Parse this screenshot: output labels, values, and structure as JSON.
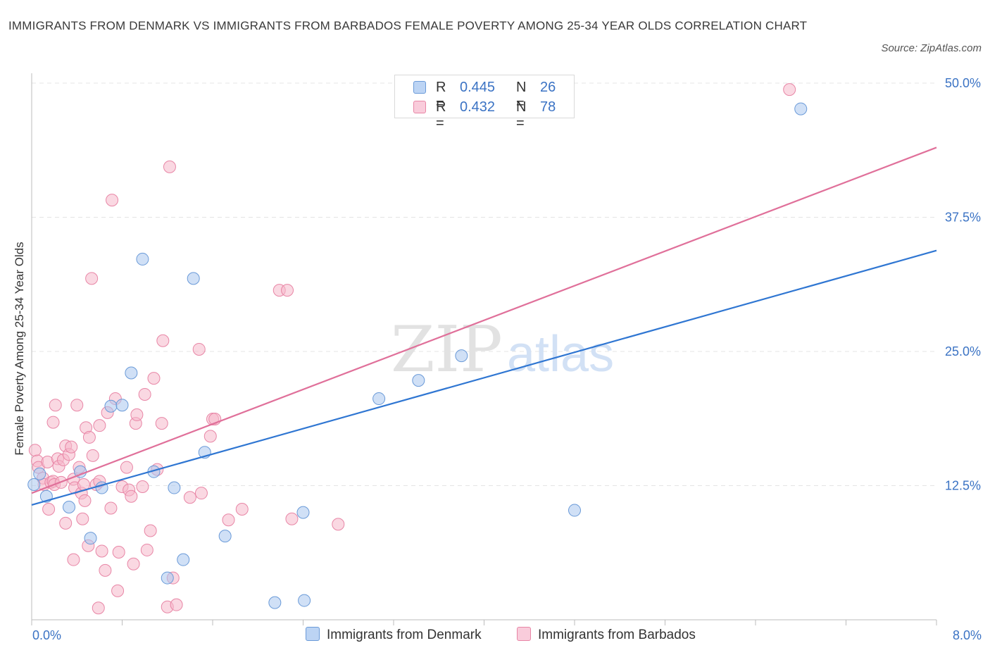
{
  "title": "IMMIGRANTS FROM DENMARK VS IMMIGRANTS FROM BARBADOS FEMALE POVERTY AMONG 25-34 YEAR OLDS CORRELATION CHART",
  "source": "Source: ZipAtlas.com",
  "watermark": {
    "zip": "ZIP",
    "atlas": "atlas"
  },
  "colors": {
    "denmark_fill": "#a9c6ef",
    "denmark_stroke": "#6a9ad8",
    "denmark_line": "#2f76d2",
    "barbados_fill": "#f5b8cb",
    "barbados_stroke": "#e886a6",
    "barbados_line": "#e0709a",
    "grid": "#e4e4e4",
    "tick_label": "#3b73c4"
  },
  "legend": {
    "denmark": {
      "r_label": "R =",
      "r_value": "0.445",
      "n_label": "N =",
      "n_value": "26"
    },
    "barbados": {
      "r_label": "R =",
      "r_value": "0.432",
      "n_label": "N =",
      "n_value": "78"
    }
  },
  "chart_data": {
    "type": "scatter",
    "title": "IMMIGRANTS FROM DENMARK VS IMMIGRANTS FROM BARBADOS FEMALE POVERTY AMONG 25-34 YEAR OLDS CORRELATION CHART",
    "xlabel": "",
    "ylabel": "Female Poverty Among 25-34 Year Olds",
    "xlim": [
      0,
      8
    ],
    "ylim": [
      0,
      50
    ],
    "x_tick_labels": [
      "0.0%",
      "8.0%"
    ],
    "y_ticks": [
      12.5,
      25,
      37.5,
      50
    ],
    "y_tick_labels": [
      "12.5%",
      "25.0%",
      "37.5%",
      "50.0%"
    ],
    "grid": true,
    "legend_position": "top-center",
    "series": [
      {
        "name": "Immigrants from Denmark",
        "color": "#a9c6ef",
        "trend": {
          "x": [
            0,
            8
          ],
          "y": [
            10.7,
            34.4
          ]
        },
        "points": [
          [
            0.02,
            12.6
          ],
          [
            0.07,
            13.6
          ],
          [
            0.13,
            11.5
          ],
          [
            0.33,
            10.5
          ],
          [
            0.43,
            13.8
          ],
          [
            0.52,
            7.6
          ],
          [
            0.62,
            12.3
          ],
          [
            0.7,
            19.9
          ],
          [
            0.8,
            20.0
          ],
          [
            0.88,
            23.0
          ],
          [
            0.98,
            33.6
          ],
          [
            1.08,
            13.8
          ],
          [
            1.2,
            3.9
          ],
          [
            1.26,
            12.3
          ],
          [
            1.34,
            5.6
          ],
          [
            1.43,
            31.8
          ],
          [
            1.53,
            15.6
          ],
          [
            1.71,
            7.8
          ],
          [
            2.15,
            1.6
          ],
          [
            2.4,
            10.0
          ],
          [
            2.41,
            1.8
          ],
          [
            3.07,
            20.6
          ],
          [
            3.42,
            22.3
          ],
          [
            3.8,
            24.6
          ],
          [
            4.8,
            10.2
          ],
          [
            6.8,
            47.6
          ]
        ]
      },
      {
        "name": "Immigrants from Barbados",
        "color": "#f5b8cb",
        "trend": {
          "x": [
            0,
            8
          ],
          "y": [
            11.8,
            44.0
          ]
        },
        "points": [
          [
            0.03,
            15.8
          ],
          [
            0.05,
            14.8
          ],
          [
            0.06,
            14.2
          ],
          [
            0.1,
            13.2
          ],
          [
            0.11,
            12.6
          ],
          [
            0.14,
            14.7
          ],
          [
            0.15,
            10.3
          ],
          [
            0.17,
            12.8
          ],
          [
            0.19,
            12.9
          ],
          [
            0.19,
            18.4
          ],
          [
            0.2,
            12.6
          ],
          [
            0.21,
            20.0
          ],
          [
            0.23,
            15.0
          ],
          [
            0.24,
            14.3
          ],
          [
            0.26,
            12.8
          ],
          [
            0.28,
            14.9
          ],
          [
            0.3,
            16.2
          ],
          [
            0.3,
            9.0
          ],
          [
            0.33,
            15.4
          ],
          [
            0.35,
            16.1
          ],
          [
            0.37,
            13.1
          ],
          [
            0.38,
            12.3
          ],
          [
            0.37,
            5.6
          ],
          [
            0.4,
            20.0
          ],
          [
            0.42,
            14.2
          ],
          [
            0.44,
            11.8
          ],
          [
            0.45,
            9.4
          ],
          [
            0.46,
            12.6
          ],
          [
            0.47,
            11.1
          ],
          [
            0.48,
            17.9
          ],
          [
            0.5,
            6.9
          ],
          [
            0.51,
            17.0
          ],
          [
            0.53,
            31.8
          ],
          [
            0.54,
            15.3
          ],
          [
            0.57,
            12.6
          ],
          [
            0.59,
            1.1
          ],
          [
            0.6,
            18.1
          ],
          [
            0.6,
            12.9
          ],
          [
            0.62,
            6.4
          ],
          [
            0.65,
            4.6
          ],
          [
            0.67,
            19.3
          ],
          [
            0.7,
            10.4
          ],
          [
            0.71,
            39.1
          ],
          [
            0.74,
            20.6
          ],
          [
            0.76,
            2.7
          ],
          [
            0.77,
            6.3
          ],
          [
            0.8,
            12.4
          ],
          [
            0.84,
            14.2
          ],
          [
            0.86,
            12.1
          ],
          [
            0.88,
            11.5
          ],
          [
            0.9,
            5.2
          ],
          [
            0.92,
            18.3
          ],
          [
            0.93,
            19.1
          ],
          [
            0.98,
            12.4
          ],
          [
            1.0,
            21.0
          ],
          [
            1.02,
            6.5
          ],
          [
            1.05,
            8.3
          ],
          [
            1.08,
            22.5
          ],
          [
            1.11,
            14.0
          ],
          [
            1.15,
            18.3
          ],
          [
            1.16,
            26.0
          ],
          [
            1.2,
            1.2
          ],
          [
            1.22,
            42.2
          ],
          [
            1.25,
            3.9
          ],
          [
            1.28,
            1.4
          ],
          [
            1.4,
            11.4
          ],
          [
            1.48,
            25.2
          ],
          [
            1.5,
            11.8
          ],
          [
            1.58,
            17.1
          ],
          [
            1.6,
            18.7
          ],
          [
            1.62,
            18.7
          ],
          [
            1.74,
            9.3
          ],
          [
            1.86,
            10.3
          ],
          [
            2.19,
            30.7
          ],
          [
            2.26,
            30.7
          ],
          [
            2.3,
            9.4
          ],
          [
            2.71,
            8.9
          ],
          [
            6.7,
            49.4
          ]
        ]
      }
    ]
  },
  "bottom_legend": {
    "denmark": "Immigrants from Denmark",
    "barbados": "Immigrants from Barbados"
  }
}
